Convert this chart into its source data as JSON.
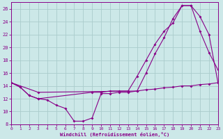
{
  "bg_color": "#cce8e8",
  "grid_color": "#aacccc",
  "line_color": "#880088",
  "xlim": [
    0,
    23
  ],
  "ylim": [
    8,
    27
  ],
  "xticks": [
    0,
    1,
    2,
    3,
    4,
    5,
    6,
    7,
    8,
    9,
    10,
    11,
    12,
    13,
    14,
    15,
    16,
    17,
    18,
    19,
    20,
    21,
    22,
    23
  ],
  "yticks": [
    8,
    10,
    12,
    14,
    16,
    18,
    20,
    22,
    24,
    26
  ],
  "xlabel": "Windchill (Refroidissement éolien,°C)",
  "line1_x": [
    0,
    1,
    2,
    3,
    4,
    5,
    6,
    7,
    8,
    9,
    10,
    11,
    12,
    13,
    14,
    15,
    16,
    17,
    18,
    19,
    20,
    21,
    22,
    23
  ],
  "line1_y": [
    14.5,
    13.8,
    12.5,
    12.0,
    11.8,
    11.0,
    10.5,
    8.5,
    8.5,
    9.0,
    12.8,
    12.8,
    13.0,
    13.0,
    13.2,
    13.4,
    13.5,
    13.7,
    13.8,
    14.0,
    14.0,
    14.2,
    14.3,
    14.5
  ],
  "line2_x": [
    0,
    1,
    2,
    3,
    9,
    10,
    11,
    12,
    13,
    14,
    15,
    16,
    17,
    18,
    19,
    20,
    21,
    22,
    23
  ],
  "line2_y": [
    14.5,
    13.8,
    12.5,
    12.0,
    13.0,
    13.0,
    13.2,
    13.2,
    13.2,
    15.5,
    18.0,
    20.5,
    22.5,
    23.8,
    26.5,
    26.5,
    22.5,
    19.2,
    16.5
  ],
  "line3_x": [
    0,
    3,
    14,
    15,
    16,
    17,
    18,
    19,
    20,
    21,
    22,
    23
  ],
  "line3_y": [
    14.5,
    13.0,
    13.2,
    16.0,
    19.0,
    21.5,
    24.5,
    26.5,
    26.5,
    24.8,
    22.0,
    14.5
  ]
}
